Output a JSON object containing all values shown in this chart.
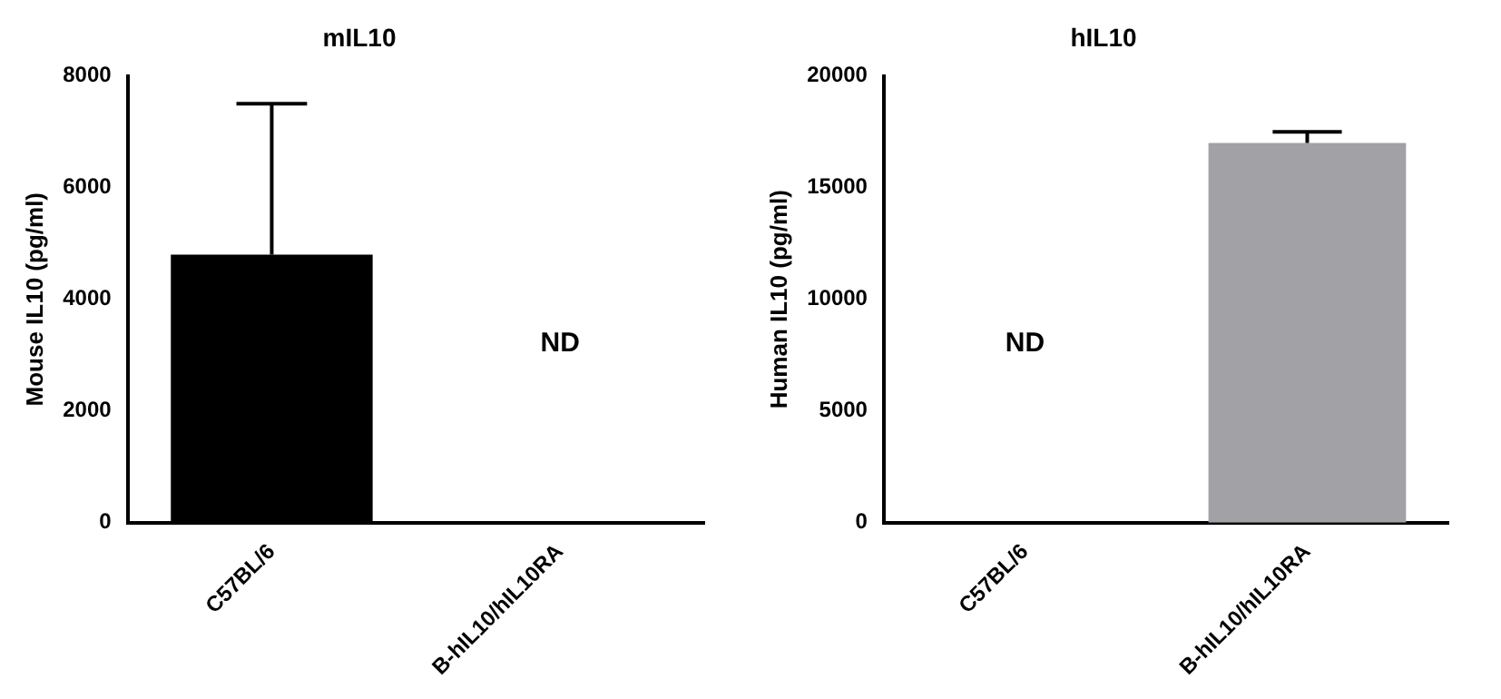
{
  "chart_data": [
    {
      "type": "bar",
      "title": "mIL10",
      "ylabel": "Mouse IL10 (pg/ml)",
      "categories": [
        "C57BL/6",
        "B-hIL10/hIL10RA"
      ],
      "values": [
        4800,
        null
      ],
      "colors": [
        "#000000",
        "#000000"
      ],
      "errors": [
        [
          4800,
          7500
        ],
        null
      ],
      "ylim": [
        0,
        8000
      ],
      "yticks": [
        0,
        2000,
        4000,
        6000,
        8000
      ],
      "annotations": [
        "ND"
      ]
    },
    {
      "type": "bar",
      "title": "hIL10",
      "ylabel": "Human IL10 (pg/ml)",
      "categories": [
        "C57BL/6",
        "B-hIL10/hIL10RA"
      ],
      "values": [
        null,
        17000
      ],
      "colors": [
        "#a2a1a6",
        "#a2a1a6"
      ],
      "errors": [
        null,
        [
          17000,
          17500
        ]
      ],
      "ylim": [
        0,
        20000
      ],
      "yticks": [
        0,
        5000,
        10000,
        15000,
        20000
      ],
      "annotations": [
        "ND"
      ]
    }
  ]
}
